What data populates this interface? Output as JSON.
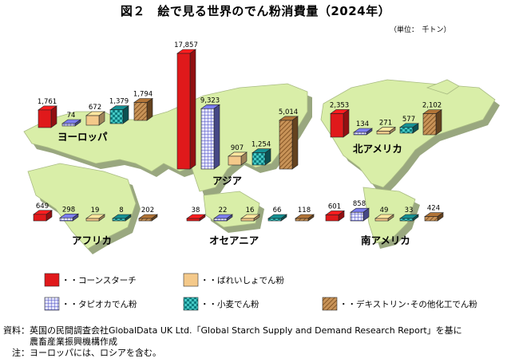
{
  "title": "図２　絵で見る世界のでん粉消費量（2024年）",
  "unit": "（単位：　千トン）",
  "colors": {
    "corn": "#e0191b",
    "tapioca": "#8a8ce0",
    "potato": "#f4c98a",
    "wheat": "#1aa3a0",
    "other": "#b57a3c",
    "land": "#d9eea8",
    "landShadow": "#8f9e72"
  },
  "legend": [
    {
      "key": "corn",
      "label": "・・コーンスターチ",
      "pattern": "solid"
    },
    {
      "key": "potato",
      "label": "・・ばれいしょでん粉",
      "pattern": "solid"
    },
    {
      "key": "tapioca",
      "label": "・・タピオカでん粉",
      "pattern": "grid"
    },
    {
      "key": "wheat",
      "label": "・・小麦でん粉",
      "pattern": "check"
    },
    {
      "key": "other",
      "label": "・・デキストリン･その他化工でん粉",
      "pattern": "hatch"
    }
  ],
  "chart_data": {
    "type": "bar",
    "unit": "千トン",
    "series_order": [
      "corn",
      "tapioca",
      "potato",
      "wheat",
      "other"
    ],
    "regions": [
      {
        "name": "ヨーロッパ",
        "values": {
          "corn": 1761,
          "tapioca": 74,
          "potato": 672,
          "wheat": 1379,
          "other": 1794
        },
        "labels": {
          "corn": "1,761",
          "tapioca": "74",
          "potato": "672",
          "wheat": "1,379",
          "other": "1,794"
        }
      },
      {
        "name": "アジア",
        "values": {
          "corn": 17857,
          "tapioca": 9323,
          "potato": 907,
          "wheat": 1254,
          "other": 5014
        },
        "labels": {
          "corn": "17,857",
          "tapioca": "9,323",
          "potato": "907",
          "wheat": "1,254",
          "other": "5,014"
        }
      },
      {
        "name": "北アメリカ",
        "values": {
          "corn": 2353,
          "tapioca": 134,
          "potato": 271,
          "wheat": 577,
          "other": 2102
        },
        "labels": {
          "corn": "2,353",
          "tapioca": "134",
          "potato": "271",
          "wheat": "577",
          "other": "2,102"
        }
      },
      {
        "name": "アフリカ",
        "values": {
          "corn": 649,
          "tapioca": 298,
          "potato": 19,
          "wheat": 8,
          "other": 202
        },
        "labels": {
          "corn": "649",
          "tapioca": "298",
          "potato": "19",
          "wheat": "8",
          "other": "202"
        }
      },
      {
        "name": "オセアニア",
        "values": {
          "corn": 38,
          "tapioca": 22,
          "potato": 16,
          "wheat": 66,
          "other": 118
        },
        "labels": {
          "corn": "38",
          "tapioca": "22",
          "potato": "16",
          "wheat": "66",
          "other": "118"
        }
      },
      {
        "name": "南アメリカ",
        "values": {
          "corn": 601,
          "tapioca": 858,
          "potato": 49,
          "wheat": 33,
          "other": 424
        },
        "labels": {
          "corn": "601",
          "tapioca": "858",
          "potato": "49",
          "wheat": "33",
          "other": "424"
        }
      }
    ]
  },
  "notes": [
    "資料：英国の民間調査会社GlobalData UK Ltd.「Global Starch Supply and Demand Research Report」を基に",
    "　　　農畜産業振興機構作成",
    "　注：ヨーロッパには、ロシアを含む。"
  ]
}
